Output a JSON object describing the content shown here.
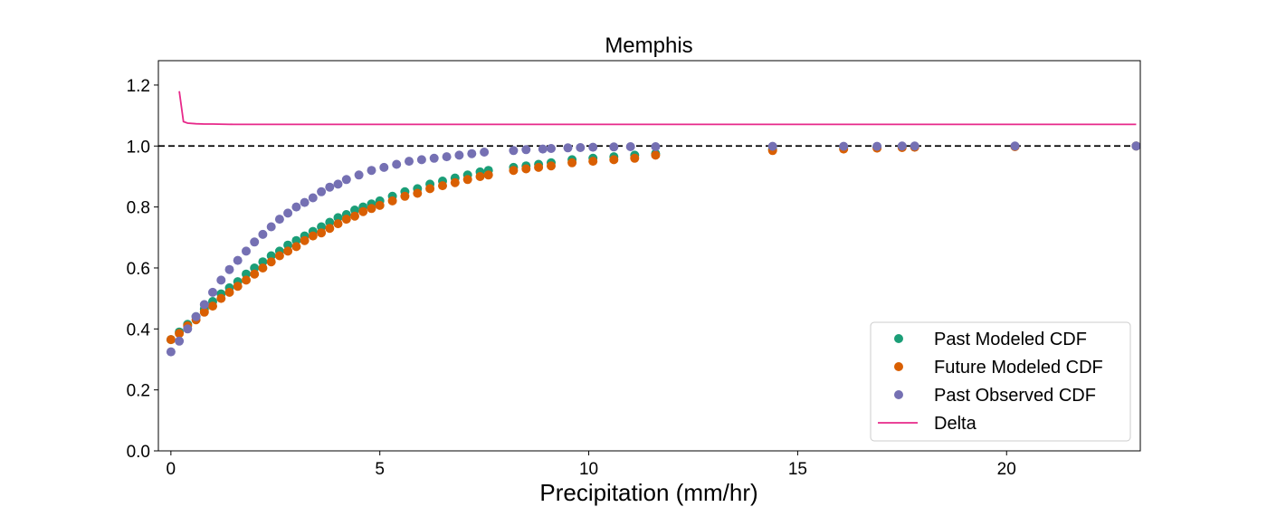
{
  "chart_data": {
    "type": "scatter",
    "title": "Memphis",
    "xlabel": "Precipitation (mm/hr)",
    "ylabel": "",
    "xlim": [
      -0.3,
      23.2
    ],
    "ylim": [
      0.0,
      1.28
    ],
    "xticks": [
      0,
      5,
      10,
      15,
      20
    ],
    "yticks": [
      0.0,
      0.2,
      0.4,
      0.6,
      0.8,
      1.0,
      1.2
    ],
    "grid": false,
    "legend_position": "lower-right",
    "reference_line": {
      "y": 1.0,
      "style": "dashed",
      "color": "#000000"
    },
    "series": [
      {
        "name": "Past Modeled CDF",
        "kind": "scatter",
        "color": "#1b9e77",
        "x": [
          0.0,
          0.2,
          0.4,
          0.6,
          0.8,
          1.0,
          1.2,
          1.4,
          1.6,
          1.8,
          2.0,
          2.2,
          2.4,
          2.6,
          2.8,
          3.0,
          3.2,
          3.4,
          3.6,
          3.8,
          4.0,
          4.2,
          4.4,
          4.6,
          4.8,
          5.0,
          5.3,
          5.6,
          5.9,
          6.2,
          6.5,
          6.8,
          7.1,
          7.4,
          7.6,
          8.2,
          8.5,
          8.8,
          9.1,
          9.6,
          10.1,
          10.6,
          11.1,
          11.6,
          14.4,
          16.1,
          16.9,
          17.5,
          17.8,
          20.2,
          23.1
        ],
        "y": [
          0.365,
          0.39,
          0.415,
          0.44,
          0.465,
          0.49,
          0.515,
          0.535,
          0.555,
          0.58,
          0.6,
          0.62,
          0.64,
          0.655,
          0.675,
          0.69,
          0.705,
          0.72,
          0.735,
          0.75,
          0.765,
          0.775,
          0.79,
          0.8,
          0.81,
          0.82,
          0.835,
          0.85,
          0.86,
          0.875,
          0.885,
          0.895,
          0.905,
          0.915,
          0.92,
          0.93,
          0.935,
          0.94,
          0.945,
          0.955,
          0.96,
          0.965,
          0.97,
          0.975,
          0.99,
          0.995,
          0.997,
          0.998,
          0.998,
          0.999,
          1.0
        ]
      },
      {
        "name": "Future Modeled CDF",
        "kind": "scatter",
        "color": "#d95f02",
        "x": [
          0.0,
          0.2,
          0.4,
          0.6,
          0.8,
          1.0,
          1.2,
          1.4,
          1.6,
          1.8,
          2.0,
          2.2,
          2.4,
          2.6,
          2.8,
          3.0,
          3.2,
          3.4,
          3.6,
          3.8,
          4.0,
          4.2,
          4.4,
          4.6,
          4.8,
          5.0,
          5.3,
          5.6,
          5.9,
          6.2,
          6.5,
          6.8,
          7.1,
          7.4,
          7.6,
          8.2,
          8.5,
          8.8,
          9.1,
          9.6,
          10.1,
          10.6,
          11.1,
          11.6,
          14.4,
          16.1,
          16.9,
          17.5,
          17.8,
          20.2,
          23.1
        ],
        "y": [
          0.365,
          0.385,
          0.41,
          0.43,
          0.455,
          0.475,
          0.5,
          0.52,
          0.54,
          0.56,
          0.58,
          0.6,
          0.62,
          0.64,
          0.655,
          0.67,
          0.69,
          0.705,
          0.715,
          0.73,
          0.745,
          0.76,
          0.77,
          0.785,
          0.795,
          0.805,
          0.82,
          0.835,
          0.845,
          0.86,
          0.87,
          0.88,
          0.89,
          0.9,
          0.905,
          0.92,
          0.925,
          0.93,
          0.935,
          0.945,
          0.95,
          0.955,
          0.96,
          0.97,
          0.985,
          0.99,
          0.993,
          0.995,
          0.996,
          0.998,
          1.0
        ]
      },
      {
        "name": "Past Observed CDF",
        "kind": "scatter",
        "color": "#7570b3",
        "x": [
          0.0,
          0.2,
          0.4,
          0.6,
          0.8,
          1.0,
          1.2,
          1.4,
          1.6,
          1.8,
          2.0,
          2.2,
          2.4,
          2.6,
          2.8,
          3.0,
          3.2,
          3.4,
          3.6,
          3.8,
          4.0,
          4.2,
          4.5,
          4.8,
          5.1,
          5.4,
          5.7,
          6.0,
          6.3,
          6.6,
          6.9,
          7.2,
          7.5,
          8.2,
          8.5,
          8.9,
          9.1,
          9.5,
          9.8,
          10.1,
          10.6,
          11.0,
          11.6,
          14.4,
          16.1,
          16.9,
          17.5,
          17.8,
          20.2,
          23.1
        ],
        "y": [
          0.325,
          0.36,
          0.4,
          0.44,
          0.48,
          0.52,
          0.56,
          0.595,
          0.625,
          0.655,
          0.685,
          0.71,
          0.735,
          0.76,
          0.78,
          0.8,
          0.815,
          0.83,
          0.85,
          0.865,
          0.875,
          0.89,
          0.905,
          0.92,
          0.93,
          0.94,
          0.95,
          0.955,
          0.96,
          0.965,
          0.97,
          0.975,
          0.98,
          0.985,
          0.988,
          0.99,
          0.992,
          0.994,
          0.995,
          0.996,
          0.997,
          0.998,
          0.998,
          0.999,
          0.999,
          0.999,
          1.0,
          1.0,
          1.0,
          1.0
        ]
      },
      {
        "name": "Delta",
        "kind": "line",
        "color": "#e7298a",
        "x": [
          0.2,
          0.3,
          0.4,
          0.6,
          0.8,
          1.0,
          1.5,
          2.0,
          3.0,
          5.0,
          10.0,
          15.0,
          20.0,
          23.1
        ],
        "y": [
          1.18,
          1.08,
          1.075,
          1.073,
          1.072,
          1.072,
          1.071,
          1.071,
          1.071,
          1.071,
          1.071,
          1.071,
          1.071,
          1.071
        ]
      }
    ]
  }
}
